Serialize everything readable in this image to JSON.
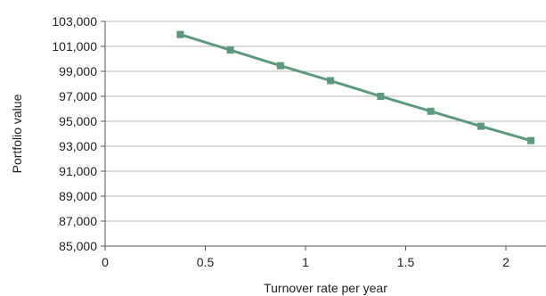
{
  "chart_data": {
    "type": "line",
    "title": "",
    "xlabel": "Turnover rate per year",
    "ylabel": "Portfolio value",
    "xlim": [
      0,
      2.2
    ],
    "ylim": [
      85000,
      103000
    ],
    "grid": true,
    "legend": "none",
    "x_ticks": [
      {
        "value": 0,
        "label": "0"
      },
      {
        "value": 0.5,
        "label": "0.5"
      },
      {
        "value": 1,
        "label": "1"
      },
      {
        "value": 1.5,
        "label": "1.5"
      },
      {
        "value": 2,
        "label": "2"
      }
    ],
    "y_ticks": [
      {
        "value": 85000,
        "label": "85,000"
      },
      {
        "value": 87000,
        "label": "87,000"
      },
      {
        "value": 89000,
        "label": "89,000"
      },
      {
        "value": 91000,
        "label": "91,000"
      },
      {
        "value": 93000,
        "label": "93,000"
      },
      {
        "value": 95000,
        "label": "95,000"
      },
      {
        "value": 97000,
        "label": "97,000"
      },
      {
        "value": 99000,
        "label": "99,000"
      },
      {
        "value": 101000,
        "label": "101,000"
      },
      {
        "value": 103000,
        "label": "103,000"
      }
    ],
    "series": [
      {
        "color": "#5b9a7c",
        "marker": "square",
        "x": [
          0.375,
          0.625,
          0.875,
          1.125,
          1.375,
          1.625,
          1.875,
          2.125
        ],
        "y": [
          101950,
          100700,
          99450,
          98250,
          97000,
          95800,
          94600,
          93450
        ]
      }
    ]
  }
}
